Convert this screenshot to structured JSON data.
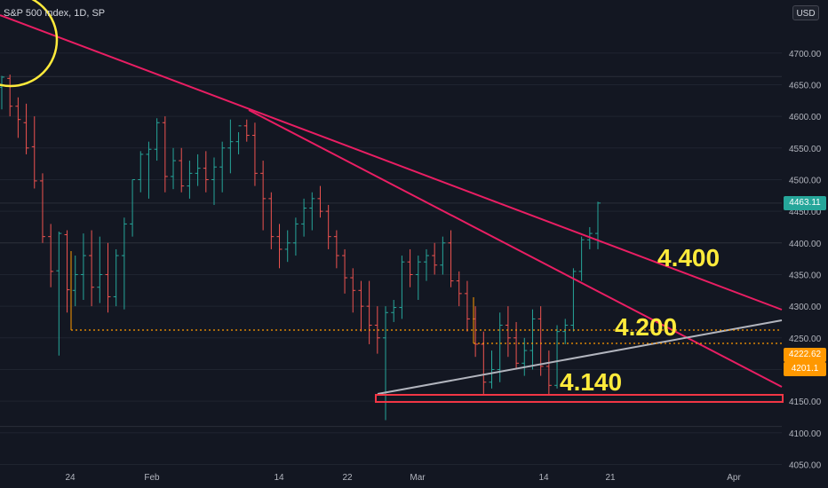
{
  "header": {
    "title": "S&P 500 Index, 1D, SP",
    "currency_button": "USD"
  },
  "colors": {
    "background": "#131722",
    "up": "#26a69a",
    "down": "#ef5350",
    "trendline": "#e91e63",
    "support": "#b2b5be",
    "dotted": "#ff9800",
    "zone": "#f23645",
    "highlight_text": "#ffeb3b",
    "circle": "#ffeb3b"
  },
  "chart_data": {
    "type": "ohlc",
    "title": "S&P 500 Index, 1D, SP",
    "x_tick_labels": [
      "24",
      "Feb",
      "14",
      "22",
      "Mar",
      "14",
      "21",
      "Apr"
    ],
    "y_tick_labels": [
      4050,
      4100,
      4150,
      4200,
      4250,
      4300,
      4350,
      4400,
      4450,
      4500,
      4550,
      4600,
      4650,
      4700
    ],
    "ylim": [
      4010,
      4760
    ],
    "price_tags": {
      "last": 4463.11,
      "dotted_a": 4222.62,
      "dotted_b": 4201.1
    },
    "annotations": [
      "4.400",
      "4.200",
      "4.140"
    ],
    "bars": [
      [
        4646,
        4664,
        4611,
        4662
      ],
      [
        4660,
        4666,
        4600,
        4616
      ],
      [
        4616,
        4630,
        4566,
        4595
      ],
      [
        4590,
        4620,
        4540,
        4550
      ],
      [
        4552,
        4600,
        4486,
        4498
      ],
      [
        4498,
        4510,
        4400,
        4410
      ],
      [
        4410,
        4430,
        4330,
        4355
      ],
      [
        4356,
        4418,
        4222,
        4415
      ],
      [
        4413,
        4420,
        4290,
        4326
      ],
      [
        4325,
        4380,
        4300,
        4350
      ],
      [
        4350,
        4415,
        4310,
        4380
      ],
      [
        4380,
        4420,
        4300,
        4330
      ],
      [
        4330,
        4410,
        4305,
        4350
      ],
      [
        4350,
        4400,
        4290,
        4315
      ],
      [
        4315,
        4390,
        4300,
        4380
      ],
      [
        4380,
        4440,
        4295,
        4430
      ],
      [
        4430,
        4500,
        4410,
        4500
      ],
      [
        4500,
        4545,
        4480,
        4540
      ],
      [
        4540,
        4560,
        4470,
        4548
      ],
      [
        4548,
        4597,
        4530,
        4590
      ],
      [
        4590,
        4600,
        4480,
        4505
      ],
      [
        4505,
        4550,
        4485,
        4530
      ],
      [
        4530,
        4550,
        4480,
        4490
      ],
      [
        4490,
        4530,
        4470,
        4510
      ],
      [
        4510,
        4540,
        4490,
        4518
      ],
      [
        4518,
        4545,
        4480,
        4500
      ],
      [
        4500,
        4535,
        4460,
        4520
      ],
      [
        4520,
        4560,
        4480,
        4550
      ],
      [
        4550,
        4595,
        4510,
        4560
      ],
      [
        4560,
        4575,
        4540,
        4585
      ],
      [
        4585,
        4595,
        4560,
        4570
      ],
      [
        4570,
        4590,
        4490,
        4510
      ],
      [
        4510,
        4530,
        4420,
        4470
      ],
      [
        4470,
        4480,
        4390,
        4410
      ],
      [
        4410,
        4430,
        4360,
        4390
      ],
      [
        4390,
        4420,
        4370,
        4400
      ],
      [
        4400,
        4440,
        4380,
        4430
      ],
      [
        4430,
        4470,
        4410,
        4455
      ],
      [
        4455,
        4480,
        4420,
        4470
      ],
      [
        4470,
        4490,
        4440,
        4450
      ],
      [
        4450,
        4460,
        4390,
        4410
      ],
      [
        4410,
        4420,
        4360,
        4380
      ],
      [
        4380,
        4390,
        4320,
        4345
      ],
      [
        4345,
        4360,
        4290,
        4325
      ],
      [
        4325,
        4340,
        4260,
        4300
      ],
      [
        4300,
        4340,
        4240,
        4270
      ],
      [
        4270,
        4300,
        4225,
        4250
      ],
      [
        4250,
        4300,
        4120,
        4290
      ],
      [
        4290,
        4310,
        4275,
        4298
      ],
      [
        4298,
        4380,
        4280,
        4370
      ],
      [
        4370,
        4390,
        4330,
        4350
      ],
      [
        4350,
        4380,
        4310,
        4370
      ],
      [
        4370,
        4390,
        4340,
        4380
      ],
      [
        4380,
        4400,
        4350,
        4365
      ],
      [
        4365,
        4410,
        4350,
        4400
      ],
      [
        4400,
        4420,
        4330,
        4340
      ],
      [
        4340,
        4355,
        4300,
        4320
      ],
      [
        4320,
        4340,
        4260,
        4280
      ],
      [
        4280,
        4300,
        4220,
        4240
      ],
      [
        4240,
        4260,
        4160,
        4180
      ],
      [
        4180,
        4230,
        4170,
        4200
      ],
      [
        4200,
        4290,
        4180,
        4270
      ],
      [
        4270,
        4300,
        4220,
        4250
      ],
      [
        4250,
        4275,
        4200,
        4210
      ],
      [
        4210,
        4250,
        4190,
        4230
      ],
      [
        4230,
        4295,
        4200,
        4280
      ],
      [
        4280,
        4300,
        4190,
        4205
      ],
      [
        4205,
        4230,
        4160,
        4175
      ],
      [
        4175,
        4270,
        4170,
        4260
      ],
      [
        4260,
        4280,
        4240,
        4270
      ],
      [
        4270,
        4360,
        4260,
        4355
      ],
      [
        4355,
        4410,
        4340,
        4405
      ],
      [
        4405,
        4425,
        4390,
        4415
      ],
      [
        4415,
        4465,
        4390,
        4463
      ]
    ]
  }
}
